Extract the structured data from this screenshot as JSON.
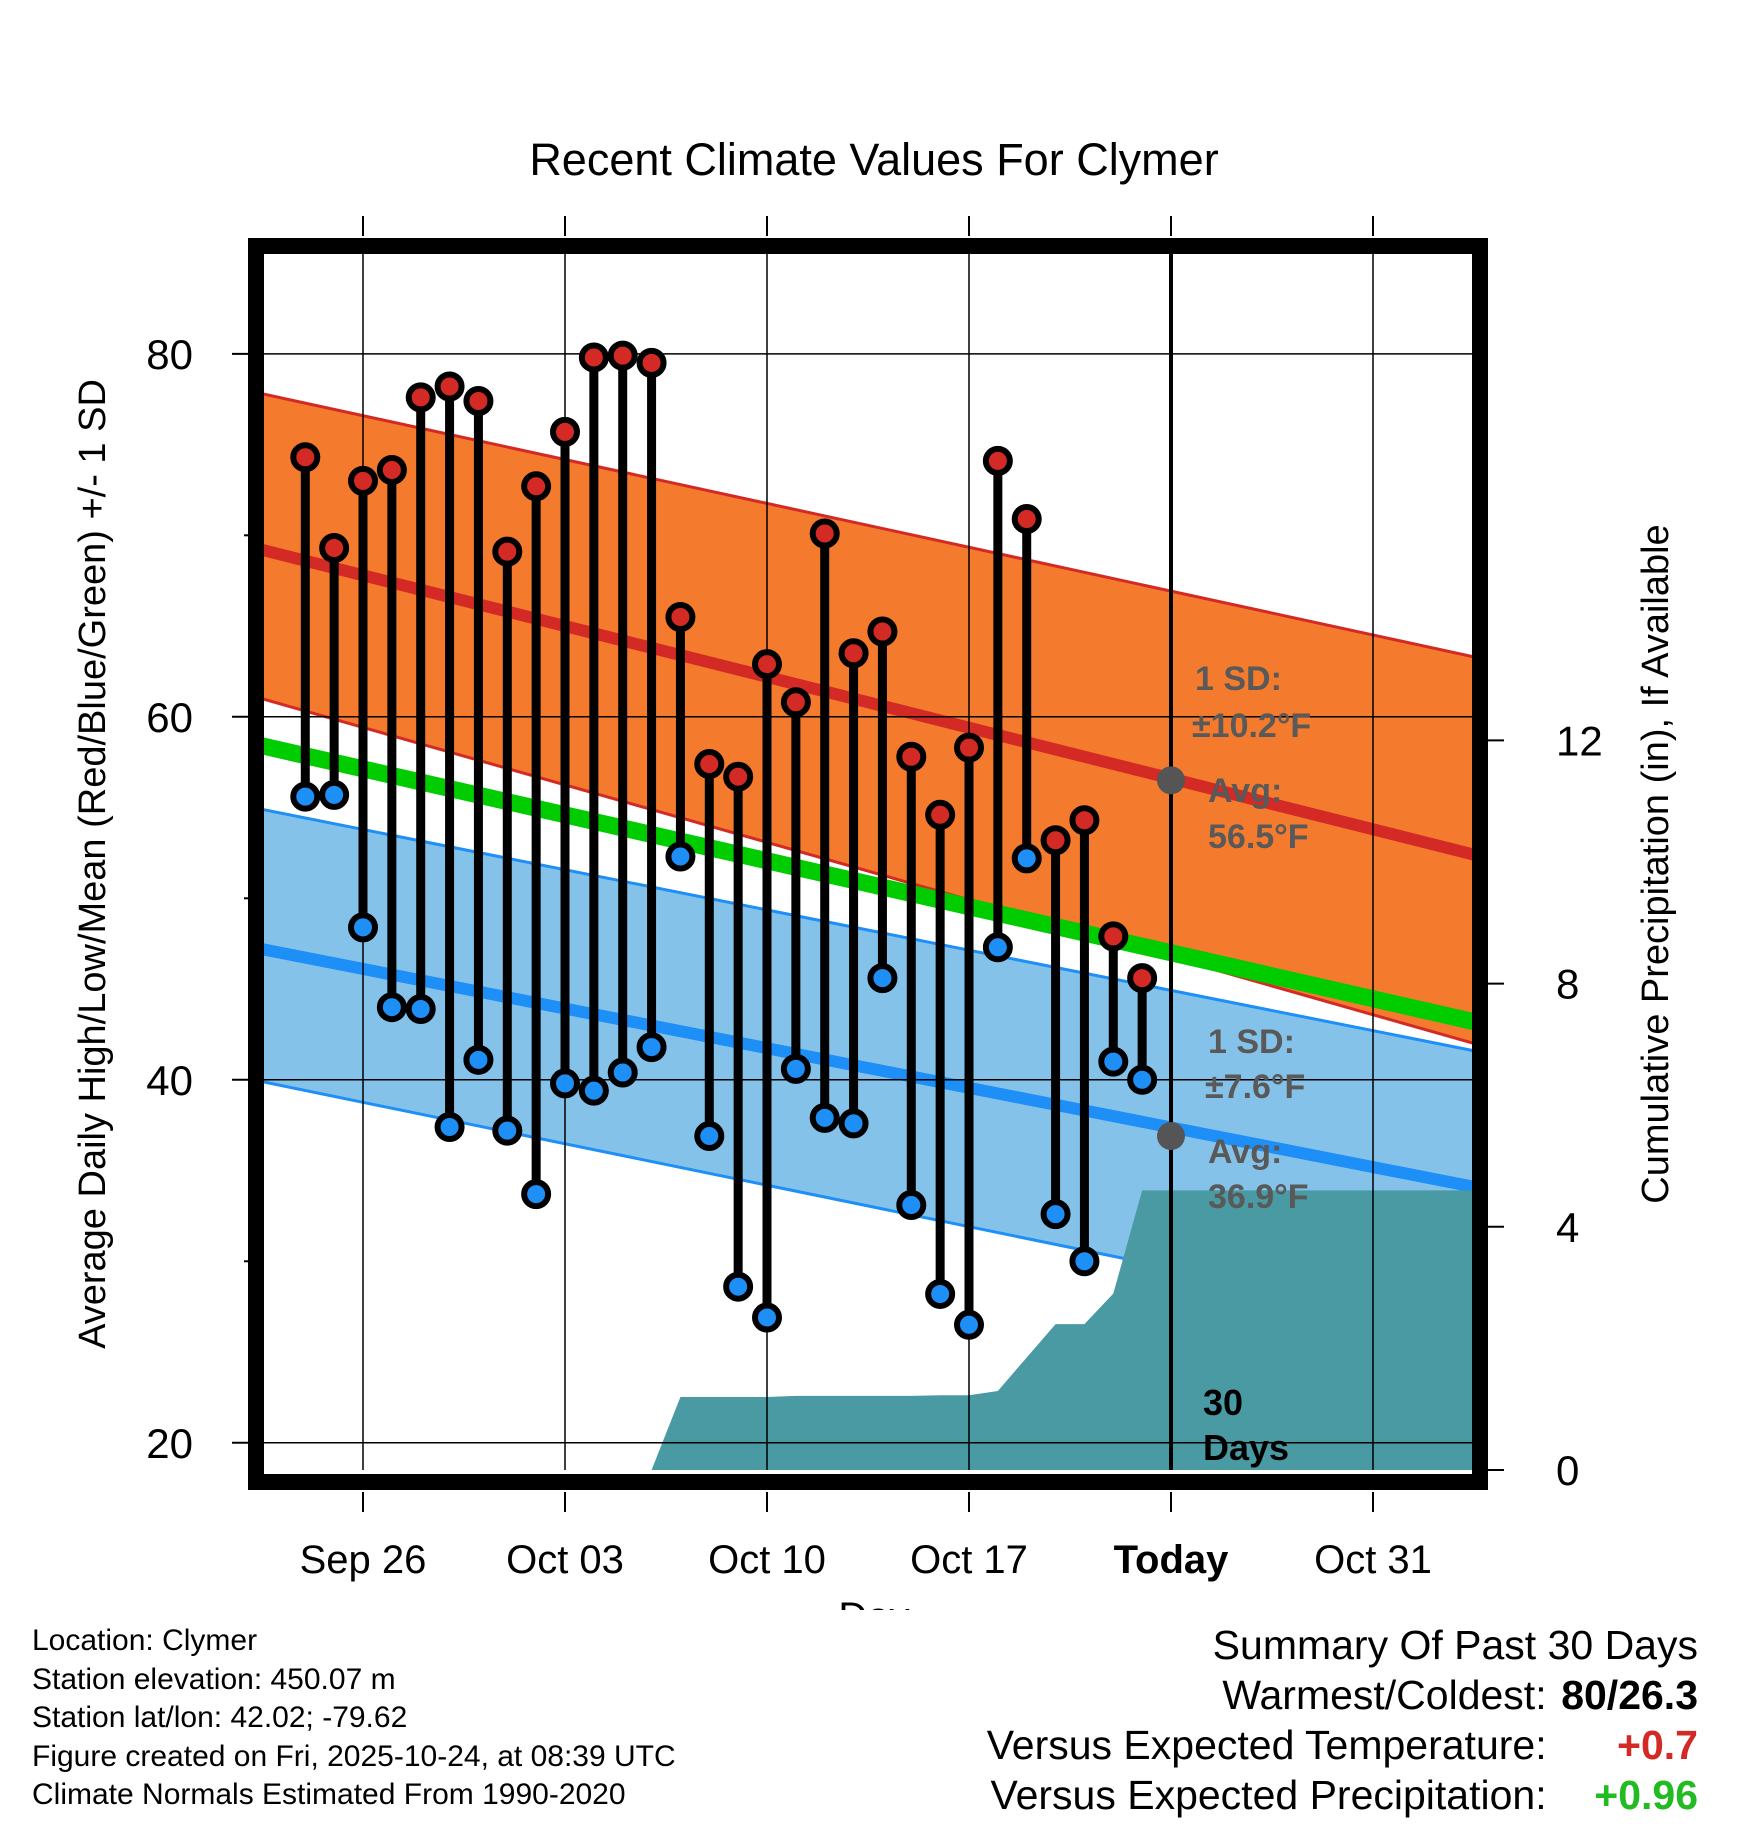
{
  "chart_data": {
    "type": "line",
    "title": "Recent Climate Values For Clymer",
    "xlabel": "Day",
    "ylabel": "Average Daily High/Low/Mean (Red/Blue/Green) +/- 1 SD",
    "y2label": "Cumulative Precipitation (in), If Available",
    "ylim": [
      18.5,
      85.5
    ],
    "y2lim": [
      0,
      20
    ],
    "xlim": [
      -0.5,
      41.5
    ],
    "yticks": [
      20,
      40,
      60,
      80
    ],
    "y2ticks": [
      0,
      4,
      8,
      12
    ],
    "xticks": [
      {
        "day": 3,
        "label": "Sep 26"
      },
      {
        "day": 10,
        "label": "Oct 03"
      },
      {
        "day": 17,
        "label": "Oct 10"
      },
      {
        "day": 24,
        "label": "Oct 17"
      },
      {
        "day": 31,
        "label": "Today"
      },
      {
        "day": 38,
        "label": "Oct 31"
      }
    ],
    "today_day": 31,
    "period_label": "30 Days",
    "normals": {
      "high_mean": [
        69.2,
        52.4
      ],
      "high_sd_upper": [
        77.8,
        63.3
      ],
      "high_sd_lower": [
        61.0,
        42.0
      ],
      "low_mean": [
        47.2,
        34.1
      ],
      "low_sd_upper": [
        54.9,
        41.6
      ],
      "low_sd_lower": [
        39.9,
        26.2
      ],
      "daily_mean": [
        58.4,
        43.2
      ]
    },
    "normal_colors": {
      "high_band": "#f47a2d",
      "high_line": "#d42a25",
      "low_band": "#85c2ea",
      "low_line": "#1e8ff6",
      "mean_line": "#00cc00",
      "precip": "#4a9aa3"
    },
    "annotations": {
      "high_sd": "1 SD:",
      "high_sd_value": "±10.2°F",
      "high_avg": "Avg:",
      "high_avg_value": "56.5°F",
      "low_sd": "1 SD:",
      "low_sd_value": "±7.6°F",
      "low_avg": "Avg:",
      "low_avg_value": "36.9°F",
      "marker_high": 56.5,
      "marker_low": 36.9
    },
    "series": [
      {
        "name": "Daily High",
        "color": "#d42a25",
        "x": [
          1,
          2,
          3,
          4,
          5,
          6,
          7,
          8,
          9,
          10,
          11,
          12,
          13,
          14,
          15,
          16,
          17,
          18,
          19,
          20,
          21,
          22,
          23,
          24,
          25,
          26,
          27,
          28,
          29,
          30
        ],
        "values": [
          74.3,
          69.3,
          73.0,
          73.6,
          77.6,
          78.2,
          77.4,
          69.1,
          72.7,
          75.7,
          79.8,
          79.9,
          79.5,
          65.5,
          57.4,
          56.7,
          62.9,
          60.8,
          70.1,
          63.5,
          64.7,
          57.8,
          54.6,
          58.3,
          74.1,
          70.9,
          53.2,
          54.3,
          47.9,
          45.6
        ]
      },
      {
        "name": "Daily Low",
        "color": "#1e8ff6",
        "x": [
          1,
          2,
          3,
          4,
          5,
          6,
          7,
          8,
          9,
          10,
          11,
          12,
          13,
          14,
          15,
          16,
          17,
          18,
          19,
          20,
          21,
          22,
          23,
          24,
          25,
          26,
          27,
          28,
          29,
          30
        ],
        "values": [
          55.6,
          55.7,
          48.4,
          44.0,
          43.9,
          37.4,
          41.1,
          37.2,
          33.7,
          39.8,
          39.4,
          40.4,
          41.8,
          52.3,
          36.9,
          28.6,
          26.9,
          40.6,
          37.9,
          37.6,
          45.6,
          33.1,
          28.2,
          26.5,
          47.3,
          52.2,
          32.6,
          30.0,
          41.0,
          40.0
        ]
      },
      {
        "name": "Cumulative Precipitation",
        "color": "#4a9aa3",
        "axis": "right",
        "x": [
          12,
          13,
          14,
          15,
          16,
          17,
          18,
          19,
          20,
          21,
          22,
          23,
          24,
          25,
          26,
          27,
          28,
          29,
          30,
          31,
          41.5
        ],
        "values": [
          0,
          0,
          1.2,
          1.2,
          1.2,
          1.2,
          1.22,
          1.22,
          1.22,
          1.22,
          1.22,
          1.23,
          1.23,
          1.3,
          1.85,
          2.4,
          2.4,
          2.9,
          4.6,
          4.6,
          4.6
        ]
      }
    ]
  },
  "info": {
    "location": "Location: Clymer",
    "elevation": "Station elevation: 450.07 m",
    "latlon": "Station lat/lon: 42.02; -79.62",
    "created": "Figure created on Fri, 2025-10-24, at 08:39 UTC",
    "normals": "Climate Normals Estimated From 1990-2020"
  },
  "summary": {
    "title": "Summary Of Past 30 Days",
    "warmest_label": "Warmest/Coldest:",
    "warmest_value": "80/26.3",
    "temp_label": "Versus Expected Temperature:",
    "temp_value": "+0.7",
    "temp_color": "#d42a25",
    "precip_label": "Versus Expected Precipitation:",
    "precip_value": "+0.96",
    "precip_color": "#22bb22"
  }
}
